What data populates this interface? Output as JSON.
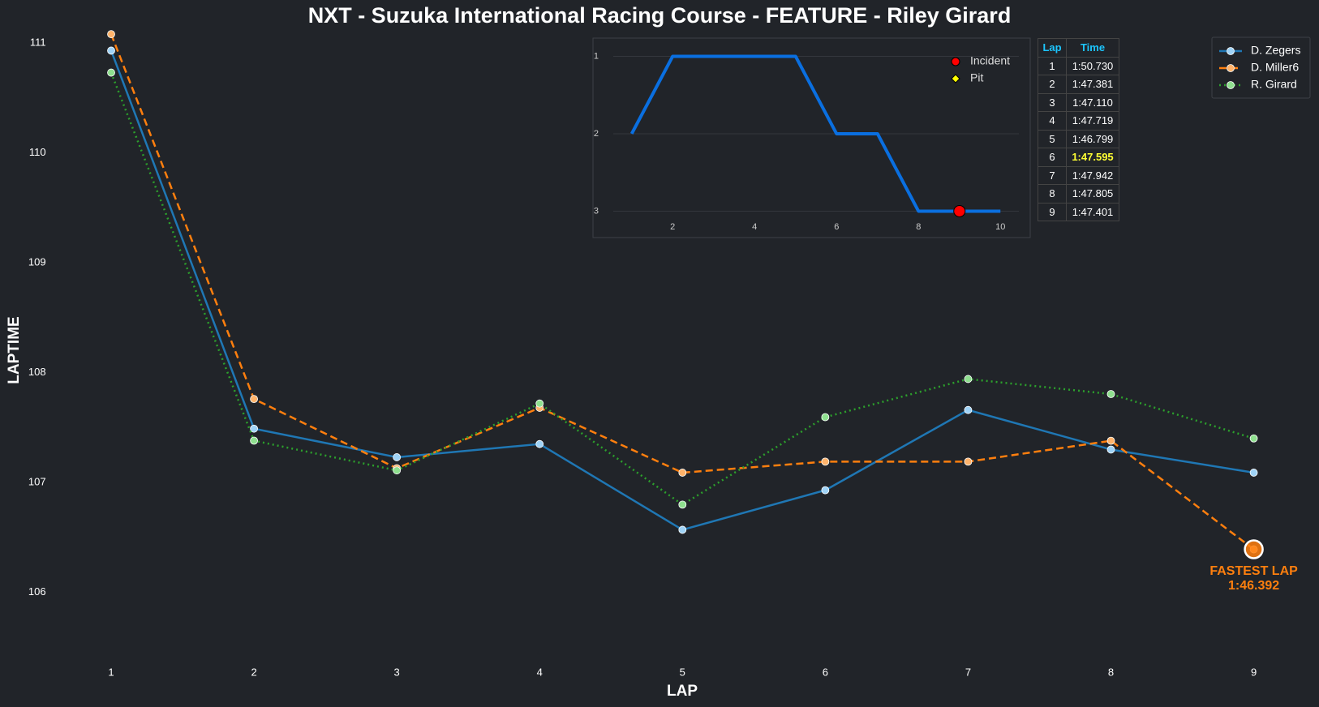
{
  "chart_data": [
    {
      "type": "line",
      "title": "NXT - Suzuka International Racing Course - FEATURE - Riley Girard",
      "xlabel": "LAP",
      "ylabel": "LAPTIME",
      "x": [
        1,
        2,
        3,
        4,
        5,
        6,
        7,
        8,
        9
      ],
      "xlim": [
        0.6,
        9.4
      ],
      "xticks": [
        1,
        2,
        3,
        4,
        5,
        6,
        7,
        8,
        9
      ],
      "ylim": [
        105.4,
        111.1
      ],
      "yticks": [
        106,
        107,
        108,
        109,
        110,
        111
      ],
      "legend": "upper right",
      "grid": false,
      "series": [
        {
          "name": "D. Zegers",
          "color": "#1f77b4",
          "marker_color": "#9fd3f7",
          "dash": "solid",
          "values": [
            110.93,
            107.49,
            107.23,
            107.35,
            106.57,
            106.93,
            107.66,
            107.3,
            107.09
          ]
        },
        {
          "name": "D. Miller6",
          "color": "#ff7f0e",
          "marker_color": "#ffb36b",
          "dash": "dashed",
          "values": [
            111.08,
            107.76,
            107.13,
            107.68,
            107.09,
            107.19,
            107.19,
            107.38,
            106.392
          ]
        },
        {
          "name": "R. Girard",
          "color": "#2ca02c",
          "marker_color": "#8fe08f",
          "dash": "dotted",
          "values": [
            110.73,
            107.381,
            107.11,
            107.719,
            106.799,
            107.595,
            107.942,
            107.805,
            107.401
          ]
        }
      ],
      "annotation": {
        "lines": [
          "FASTEST LAP",
          "1:46.392"
        ],
        "x": 9,
        "y": 106.392,
        "color": "#ff7f0e"
      }
    },
    {
      "type": "line",
      "x": [
        1,
        2,
        3,
        4,
        5,
        6,
        7,
        8,
        9,
        10
      ],
      "xlim": [
        0.55,
        10.45
      ],
      "xticks": [
        2,
        4,
        6,
        8,
        10
      ],
      "ylim": [
        3.1,
        0.88
      ],
      "yticks": [
        1,
        2,
        3
      ],
      "grid": true,
      "legend": "upper right",
      "series": [
        {
          "color": "#0a6fe0",
          "values": [
            2,
            1,
            1,
            1,
            1,
            2,
            2,
            3,
            3,
            3
          ]
        }
      ],
      "markers": [
        {
          "name": "Incident",
          "color": "#ff0000",
          "shape": "circle",
          "x": [
            9
          ],
          "y": [
            3
          ]
        },
        {
          "name": "Pit",
          "color": "#ffff00",
          "shape": "diamond",
          "x": [],
          "y": []
        }
      ]
    }
  ],
  "table": {
    "header": [
      "Lap",
      "Time"
    ],
    "rows": [
      [
        1,
        "1:50.730"
      ],
      [
        2,
        "1:47.381"
      ],
      [
        3,
        "1:47.110"
      ],
      [
        4,
        "1:47.719"
      ],
      [
        5,
        "1:46.799"
      ],
      [
        6,
        "1:47.595"
      ],
      [
        7,
        "1:47.942"
      ],
      [
        8,
        "1:47.805"
      ],
      [
        9,
        "1:47.401"
      ]
    ]
  }
}
